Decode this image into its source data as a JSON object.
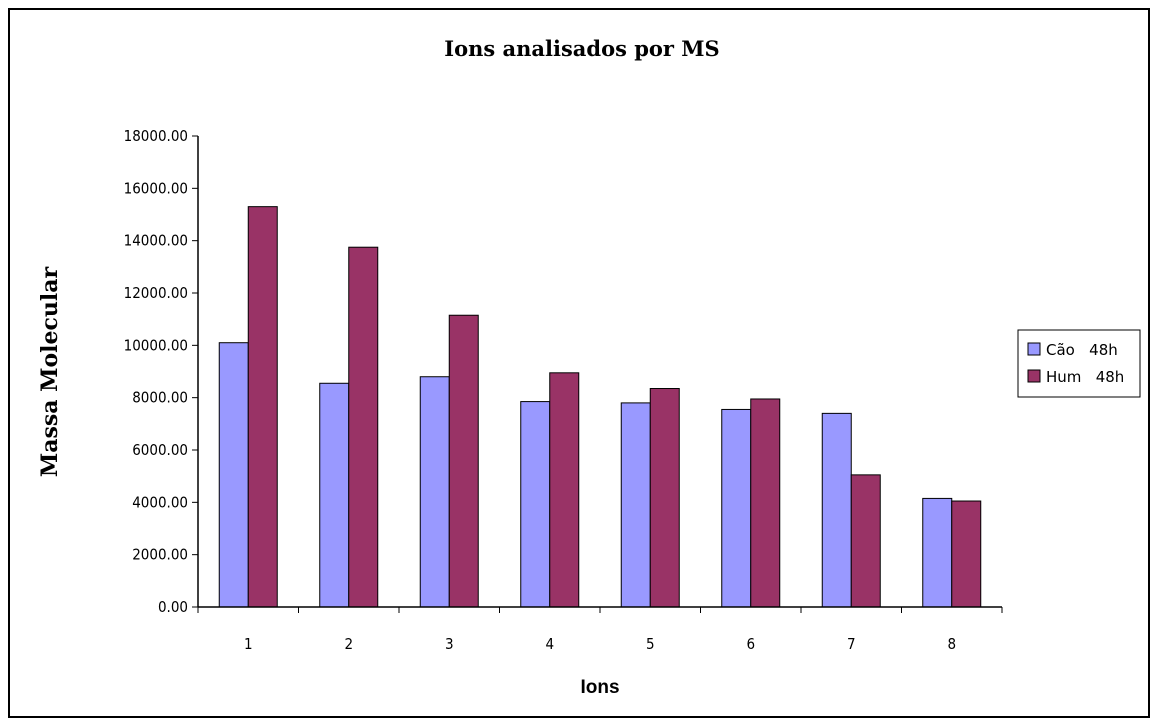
{
  "chart_data": {
    "type": "bar",
    "title": "Ions analisados por MS",
    "xlabel": "Ions",
    "ylabel": "Massa Molecular",
    "categories": [
      "1",
      "2",
      "3",
      "4",
      "5",
      "6",
      "7",
      "8"
    ],
    "series": [
      {
        "name": "Cão   48h",
        "color": "#9999ff",
        "values": [
          10100,
          8550,
          8800,
          7850,
          7800,
          7550,
          7400,
          4150
        ]
      },
      {
        "name": "Hum   48h",
        "color": "#993366",
        "values": [
          15300,
          13750,
          11150,
          8950,
          8350,
          7950,
          5050,
          4050
        ]
      }
    ],
    "ylim": [
      0,
      18000
    ],
    "yticks": [
      "0.00",
      "2000.00",
      "4000.00",
      "6000.00",
      "8000.00",
      "10000.00",
      "12000.00",
      "14000.00",
      "16000.00",
      "18000.00"
    ],
    "grid": false,
    "legend_position": "right"
  }
}
